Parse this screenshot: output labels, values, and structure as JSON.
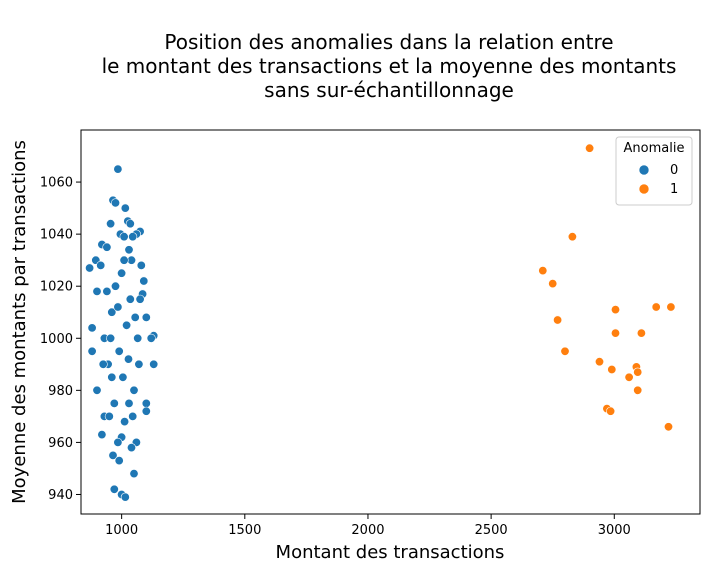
{
  "chart_data": {
    "type": "scatter",
    "title_lines": [
      "Position des anomalies dans la relation entre",
      "le montant des transactions et la moyenne des montants",
      "sans sur-échantillonnage"
    ],
    "xlabel": "Montant des transactions",
    "ylabel": "Moyenne des montants par transactions",
    "xlim": [
      835,
      3348
    ],
    "ylim": [
      932.5,
      1080
    ],
    "x_ticks": [
      1000,
      1500,
      2000,
      2500,
      3000
    ],
    "y_ticks": [
      940,
      960,
      980,
      1000,
      1020,
      1040,
      1060
    ],
    "grid": false,
    "legend": {
      "title": "Anomalie",
      "placement": "top-right"
    },
    "series": [
      {
        "name": "0",
        "color": "#1f77b4",
        "points": [
          [
            985,
            1065
          ],
          [
            965,
            1053
          ],
          [
            975,
            1052
          ],
          [
            1015,
            1050
          ],
          [
            1025,
            1045
          ],
          [
            1035,
            1044
          ],
          [
            955,
            1044
          ],
          [
            1075,
            1041
          ],
          [
            1060,
            1040
          ],
          [
            995,
            1040
          ],
          [
            1010,
            1039
          ],
          [
            1045,
            1039
          ],
          [
            920,
            1036
          ],
          [
            940,
            1035
          ],
          [
            1030,
            1034
          ],
          [
            895,
            1030
          ],
          [
            870,
            1027
          ],
          [
            915,
            1028
          ],
          [
            1080,
            1028
          ],
          [
            1090,
            1022
          ],
          [
            1085,
            1017
          ],
          [
            900,
            1018
          ],
          [
            1100,
            1008
          ],
          [
            1130,
            1001
          ],
          [
            880,
            1004
          ],
          [
            1120,
            1000
          ],
          [
            880,
            995
          ],
          [
            1130,
            990
          ],
          [
            900,
            980
          ],
          [
            1100,
            975
          ],
          [
            930,
            970
          ],
          [
            1100,
            972
          ],
          [
            920,
            963
          ],
          [
            1060,
            960
          ],
          [
            1040,
            958
          ],
          [
            965,
            955
          ],
          [
            990,
            953
          ],
          [
            1050,
            948
          ],
          [
            970,
            942
          ],
          [
            1000,
            940
          ],
          [
            1015,
            939
          ],
          [
            930,
            1000
          ],
          [
            945,
            990
          ],
          [
            960,
            1010
          ],
          [
            975,
            1020
          ],
          [
            990,
            995
          ],
          [
            1005,
            985
          ],
          [
            1020,
            1005
          ],
          [
            1035,
            1015
          ],
          [
            1050,
            980
          ],
          [
            1065,
            1000
          ],
          [
            950,
            970
          ],
          [
            1000,
            1025
          ],
          [
            1040,
            1030
          ],
          [
            970,
            975
          ],
          [
            985,
            1012
          ],
          [
            1012,
            968
          ],
          [
            1028,
            992
          ],
          [
            1055,
            1008
          ],
          [
            940,
            1018
          ],
          [
            960,
            985
          ],
          [
            1070,
            990
          ],
          [
            1045,
            970
          ],
          [
            1000,
            962
          ],
          [
            925,
            990
          ],
          [
            1075,
            1015
          ],
          [
            1010,
            1030
          ],
          [
            985,
            960
          ],
          [
            1030,
            975
          ],
          [
            955,
            1000
          ]
        ]
      },
      {
        "name": "1",
        "color": "#ff7f0e",
        "points": [
          [
            2900,
            1073
          ],
          [
            2830,
            1039
          ],
          [
            2710,
            1026
          ],
          [
            2750,
            1021
          ],
          [
            2770,
            1007
          ],
          [
            2800,
            995
          ],
          [
            2940,
            991
          ],
          [
            2990,
            988
          ],
          [
            3005,
            1011
          ],
          [
            3005,
            1002
          ],
          [
            3060,
            985
          ],
          [
            3090,
            989
          ],
          [
            3095,
            987
          ],
          [
            3095,
            980
          ],
          [
            3110,
            1002
          ],
          [
            3170,
            1012
          ],
          [
            3230,
            1012
          ],
          [
            3220,
            966
          ],
          [
            2970,
            973
          ],
          [
            2985,
            972
          ]
        ]
      }
    ]
  }
}
